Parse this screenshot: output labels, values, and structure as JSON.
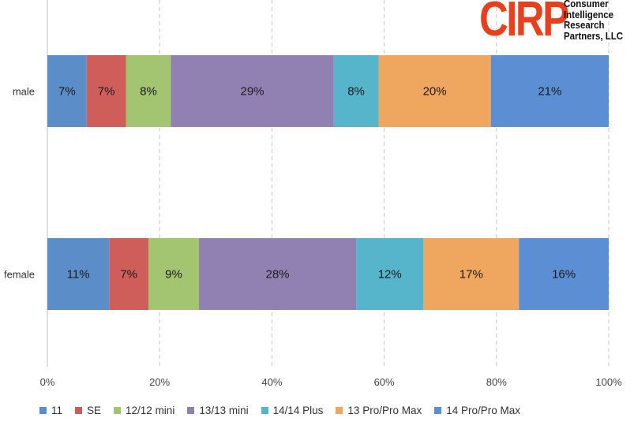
{
  "chart_data": {
    "type": "bar",
    "orientation": "horizontal",
    "stacked": true,
    "categories": [
      "male",
      "female"
    ],
    "series": [
      {
        "name": "11",
        "color": "#5b8ec9",
        "values": [
          7,
          11
        ]
      },
      {
        "name": "SE",
        "color": "#cf5e5b",
        "values": [
          7,
          7
        ]
      },
      {
        "name": "12/12 mini",
        "color": "#a3c470",
        "values": [
          8,
          9
        ]
      },
      {
        "name": "13/13 mini",
        "color": "#9181b3",
        "values": [
          29,
          28
        ]
      },
      {
        "name": "14/14 Plus",
        "color": "#56b4cb",
        "values": [
          8,
          12
        ]
      },
      {
        "name": "13 Pro/Pro Max",
        "color": "#efa65e",
        "values": [
          20,
          17
        ]
      },
      {
        "name": "14 Pro/Pro Max",
        "color": "#5b8ed3",
        "values": [
          21,
          16
        ]
      }
    ],
    "data_labels": [
      [
        "7%",
        "7%",
        "8%",
        "29%",
        "8%",
        "20%",
        "21%"
      ],
      [
        "11%",
        "7%",
        "9%",
        "28%",
        "12%",
        "17%",
        "16%"
      ]
    ],
    "xticks": [
      "0%",
      "20%",
      "40%",
      "60%",
      "80%",
      "100%"
    ],
    "xlim": [
      0,
      100
    ],
    "grid": "vertical-dashed",
    "legend": "bottom"
  },
  "logo": {
    "mark": "CIRP",
    "lines": [
      "Consumer",
      "Intelligence",
      "Research",
      "Partners, LLC"
    ]
  }
}
